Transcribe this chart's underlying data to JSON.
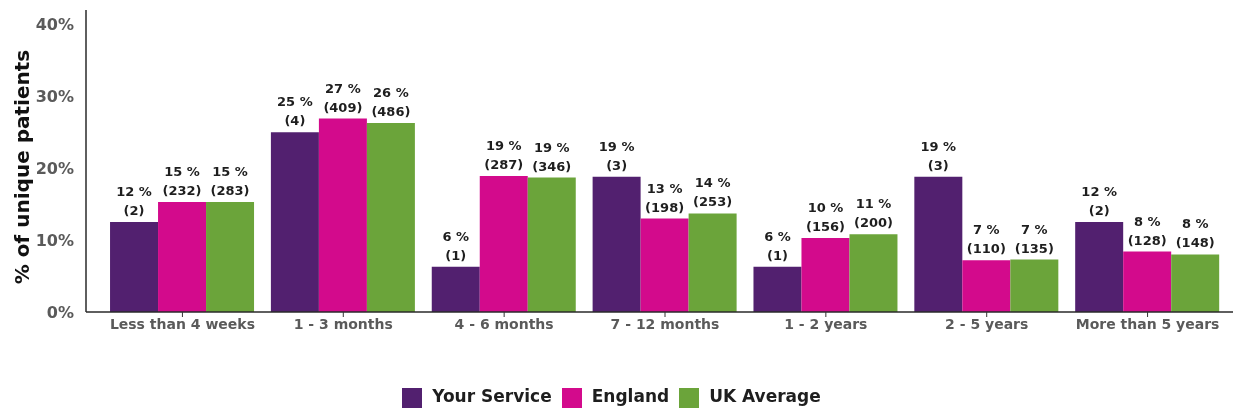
{
  "chart_data": {
    "type": "bar",
    "ylabel": "% of unique patients",
    "categories": [
      "Less than 4 weeks",
      "1 - 3 months",
      "4 -  6 months",
      "7 - 12 months",
      "1 - 2 years",
      "2 - 5 years",
      "More than 5 years"
    ],
    "series": [
      {
        "name": "Your Service",
        "color": "#52206f",
        "values": [
          12.5,
          25,
          6.3,
          18.8,
          6.3,
          18.8,
          12.5
        ],
        "value_labels": [
          "12 %\n(2)",
          "25 %\n(4)",
          "6 %\n(1)",
          "19 %\n(3)",
          "6 %\n(1)",
          "19 %\n(3)",
          "12 %\n(2)"
        ]
      },
      {
        "name": "England",
        "color": "#d30a8c",
        "values": [
          15.3,
          26.9,
          18.9,
          13.0,
          10.3,
          7.2,
          8.4
        ],
        "value_labels": [
          "15 %\n(232)",
          "27 %\n(409)",
          "19 %\n(287)",
          "13 %\n(198)",
          "10 %\n(156)",
          "7 %\n(110)",
          "8 %\n(128)"
        ]
      },
      {
        "name": "UK Average",
        "color": "#6ba43a",
        "values": [
          15.3,
          26.3,
          18.7,
          13.7,
          10.8,
          7.3,
          8.0
        ],
        "value_labels": [
          "15 %\n(283)",
          "26 %\n(486)",
          "19 %\n(346)",
          "14 %\n(253)",
          "11 %\n(200)",
          "7 %\n(135)",
          "8 %\n(148)"
        ]
      }
    ],
    "ylim": [
      0,
      42
    ],
    "yticks": [
      {
        "value": 0,
        "label": "0%"
      },
      {
        "value": 10,
        "label": "10%"
      },
      {
        "value": 20,
        "label": "20%"
      },
      {
        "value": 30,
        "label": "30%"
      },
      {
        "value": 40,
        "label": "40%"
      }
    ],
    "legend": "bottom"
  }
}
